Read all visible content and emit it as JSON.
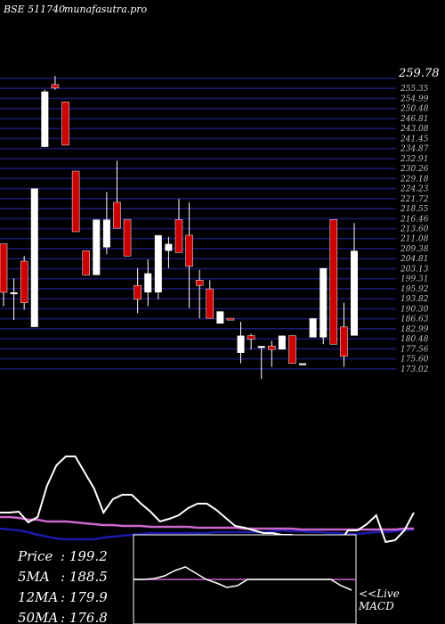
{
  "header": {
    "left_text": "BSE 511740",
    "right_text": "munafasutra.pro"
  },
  "colors": {
    "background": "#000000",
    "grid": "#1a1a6e",
    "bull": "#ffffff",
    "bear": "#cc0000",
    "price_line": "#ffffff",
    "ma_line": "#cc66cc",
    "macd_line": "#1a1aaa"
  },
  "chart_data": [
    {
      "type": "candlestick",
      "ylim": [
        173.02,
        259.78
      ],
      "y_top_label": "259.78",
      "price_levels": [
        "255.35",
        "254.99",
        "250.48",
        "246.81",
        "243.08",
        "241.45",
        "234.87",
        "232.91",
        "230.26",
        "229.18",
        "224.23",
        "221.72",
        "218.55",
        "216.46",
        "213.60",
        "211.08",
        "209.38",
        "204.81",
        "203.13",
        "199.31",
        "195.92",
        "193.82",
        "190.30",
        "186.63",
        "182.99",
        "180.48",
        "177.56",
        "175.60",
        "173.02"
      ],
      "candles": [
        {
          "o": 212.0,
          "h": 212.0,
          "l": 194.0,
          "c": 198.0,
          "dir": "down"
        },
        {
          "o": 198.0,
          "h": 202.0,
          "l": 190.0,
          "c": 198.0,
          "dir": "flat"
        },
        {
          "o": 195.0,
          "h": 208.5,
          "l": 193.0,
          "c": 207.0,
          "dir": "down"
        },
        {
          "o": 188.0,
          "h": 228.0,
          "l": 188.0,
          "c": 228.0,
          "dir": "up"
        },
        {
          "o": 240.0,
          "h": 256.5,
          "l": 240.0,
          "c": 256.0,
          "dir": "up"
        },
        {
          "o": 258.0,
          "h": 260.5,
          "l": 256.5,
          "c": 257.0,
          "dir": "down"
        },
        {
          "o": 253.0,
          "h": 253.0,
          "l": 240.5,
          "c": 240.5,
          "dir": "down"
        },
        {
          "o": 233.0,
          "h": 233.0,
          "l": 215.5,
          "c": 215.5,
          "dir": "down"
        },
        {
          "o": 210.0,
          "h": 210.0,
          "l": 203.0,
          "c": 203.0,
          "dir": "down"
        },
        {
          "o": 203.0,
          "h": 219.0,
          "l": 203.0,
          "c": 219.0,
          "dir": "up"
        },
        {
          "o": 211.0,
          "h": 227.0,
          "l": 209.0,
          "c": 219.0,
          "dir": "up"
        },
        {
          "o": 224.0,
          "h": 236.0,
          "l": 216.5,
          "c": 216.5,
          "dir": "down"
        },
        {
          "o": 219.0,
          "h": 219.0,
          "l": 208.5,
          "c": 208.5,
          "dir": "down"
        },
        {
          "o": 200.0,
          "h": 205.0,
          "l": 192.0,
          "c": 196.0,
          "dir": "down"
        },
        {
          "o": 198.0,
          "h": 207.5,
          "l": 194.0,
          "c": 203.5,
          "dir": "up"
        },
        {
          "o": 198.0,
          "h": 214.5,
          "l": 196.0,
          "c": 214.5,
          "dir": "up"
        },
        {
          "o": 210.0,
          "h": 214.0,
          "l": 205.0,
          "c": 212.0,
          "dir": "up"
        },
        {
          "o": 219.0,
          "h": 225.0,
          "l": 209.5,
          "c": 209.5,
          "dir": "down"
        },
        {
          "o": 214.5,
          "h": 224.0,
          "l": 193.5,
          "c": 205.5,
          "dir": "down"
        },
        {
          "o": 201.5,
          "h": 204.5,
          "l": 190.5,
          "c": 200.0,
          "dir": "down"
        },
        {
          "o": 199.0,
          "h": 201.5,
          "l": 190.5,
          "c": 190.5,
          "dir": "down"
        },
        {
          "o": 189.0,
          "h": 192.5,
          "l": 189.0,
          "c": 192.5,
          "dir": "up"
        },
        {
          "o": 190.5,
          "h": 190.5,
          "l": 190.5,
          "c": 190.5,
          "dir": "down"
        },
        {
          "o": 180.5,
          "h": 189.5,
          "l": 177.5,
          "c": 185.5,
          "dir": "up"
        },
        {
          "o": 185.5,
          "h": 186.0,
          "l": 181.5,
          "c": 184.5,
          "dir": "down"
        },
        {
          "o": 182.5,
          "h": 182.5,
          "l": 173.0,
          "c": 182.5,
          "dir": "flat"
        },
        {
          "o": 182.5,
          "h": 184.0,
          "l": 176.5,
          "c": 181.5,
          "dir": "down"
        },
        {
          "o": 181.5,
          "h": 185.5,
          "l": 181.5,
          "c": 185.5,
          "dir": "up"
        },
        {
          "o": 185.5,
          "h": 185.5,
          "l": 177.5,
          "c": 177.5,
          "dir": "down"
        },
        {
          "o": 177.5,
          "h": 177.5,
          "l": 177.5,
          "c": 177.5,
          "dir": "flat"
        },
        {
          "o": 185.0,
          "h": 190.5,
          "l": 185.0,
          "c": 190.5,
          "dir": "up"
        },
        {
          "o": 185.0,
          "h": 205.0,
          "l": 183.0,
          "c": 205.0,
          "dir": "up"
        },
        {
          "o": 219.0,
          "h": 219.0,
          "l": 183.0,
          "c": 183.0,
          "dir": "down"
        },
        {
          "o": 188.0,
          "h": 195.0,
          "l": 176.5,
          "c": 179.5,
          "dir": "down"
        },
        {
          "o": 185.5,
          "h": 218.0,
          "l": 185.5,
          "c": 210.0,
          "dir": "up"
        }
      ]
    },
    {
      "type": "line",
      "series": [
        {
          "name": "Price",
          "values": [
            575,
            575,
            574,
            586,
            580,
            545,
            522,
            512,
            512,
            530,
            548,
            575,
            560,
            555,
            555,
            565,
            574,
            585,
            582,
            578,
            570,
            565,
            565,
            572,
            581,
            590,
            592,
            595,
            598,
            598,
            600,
            600,
            603,
            603,
            606,
            608,
            610,
            595,
            595,
            588,
            578,
            608,
            606,
            595,
            575
          ]
        },
        {
          "name": "MA",
          "values": [
            580,
            580,
            581,
            583,
            583,
            585,
            585,
            585,
            586,
            587,
            588,
            589,
            589,
            590,
            590,
            590,
            591,
            591,
            591,
            591,
            591,
            592,
            592,
            592,
            592,
            592,
            593,
            593,
            593,
            593,
            593,
            593,
            594,
            594,
            594,
            594,
            594,
            594,
            594,
            594,
            594,
            594,
            594,
            593,
            593
          ]
        },
        {
          "name": "MACD",
          "values": [
            593,
            594,
            595,
            597,
            600,
            602,
            604,
            605,
            605,
            605,
            605,
            603,
            602,
            601,
            600,
            599,
            598,
            598,
            598,
            598,
            598,
            598,
            598,
            597,
            597,
            597,
            597,
            597,
            597,
            596,
            595,
            596,
            596,
            597,
            597,
            598,
            598,
            599,
            599,
            598,
            597,
            597,
            596,
            595,
            594
          ]
        }
      ]
    }
  ],
  "indicators": {
    "price_label": "Price",
    "price_value": ": 199.2",
    "ma5_label": "5MA",
    "ma5_value": ": 188.5",
    "ma12_label": "12MA",
    "ma12_value": ": 179.9",
    "ma50_label": "50MA",
    "ma50_value": ": 176.8"
  },
  "macd_panel": {
    "live_label": "<<Live",
    "macd_label": "MACD"
  }
}
